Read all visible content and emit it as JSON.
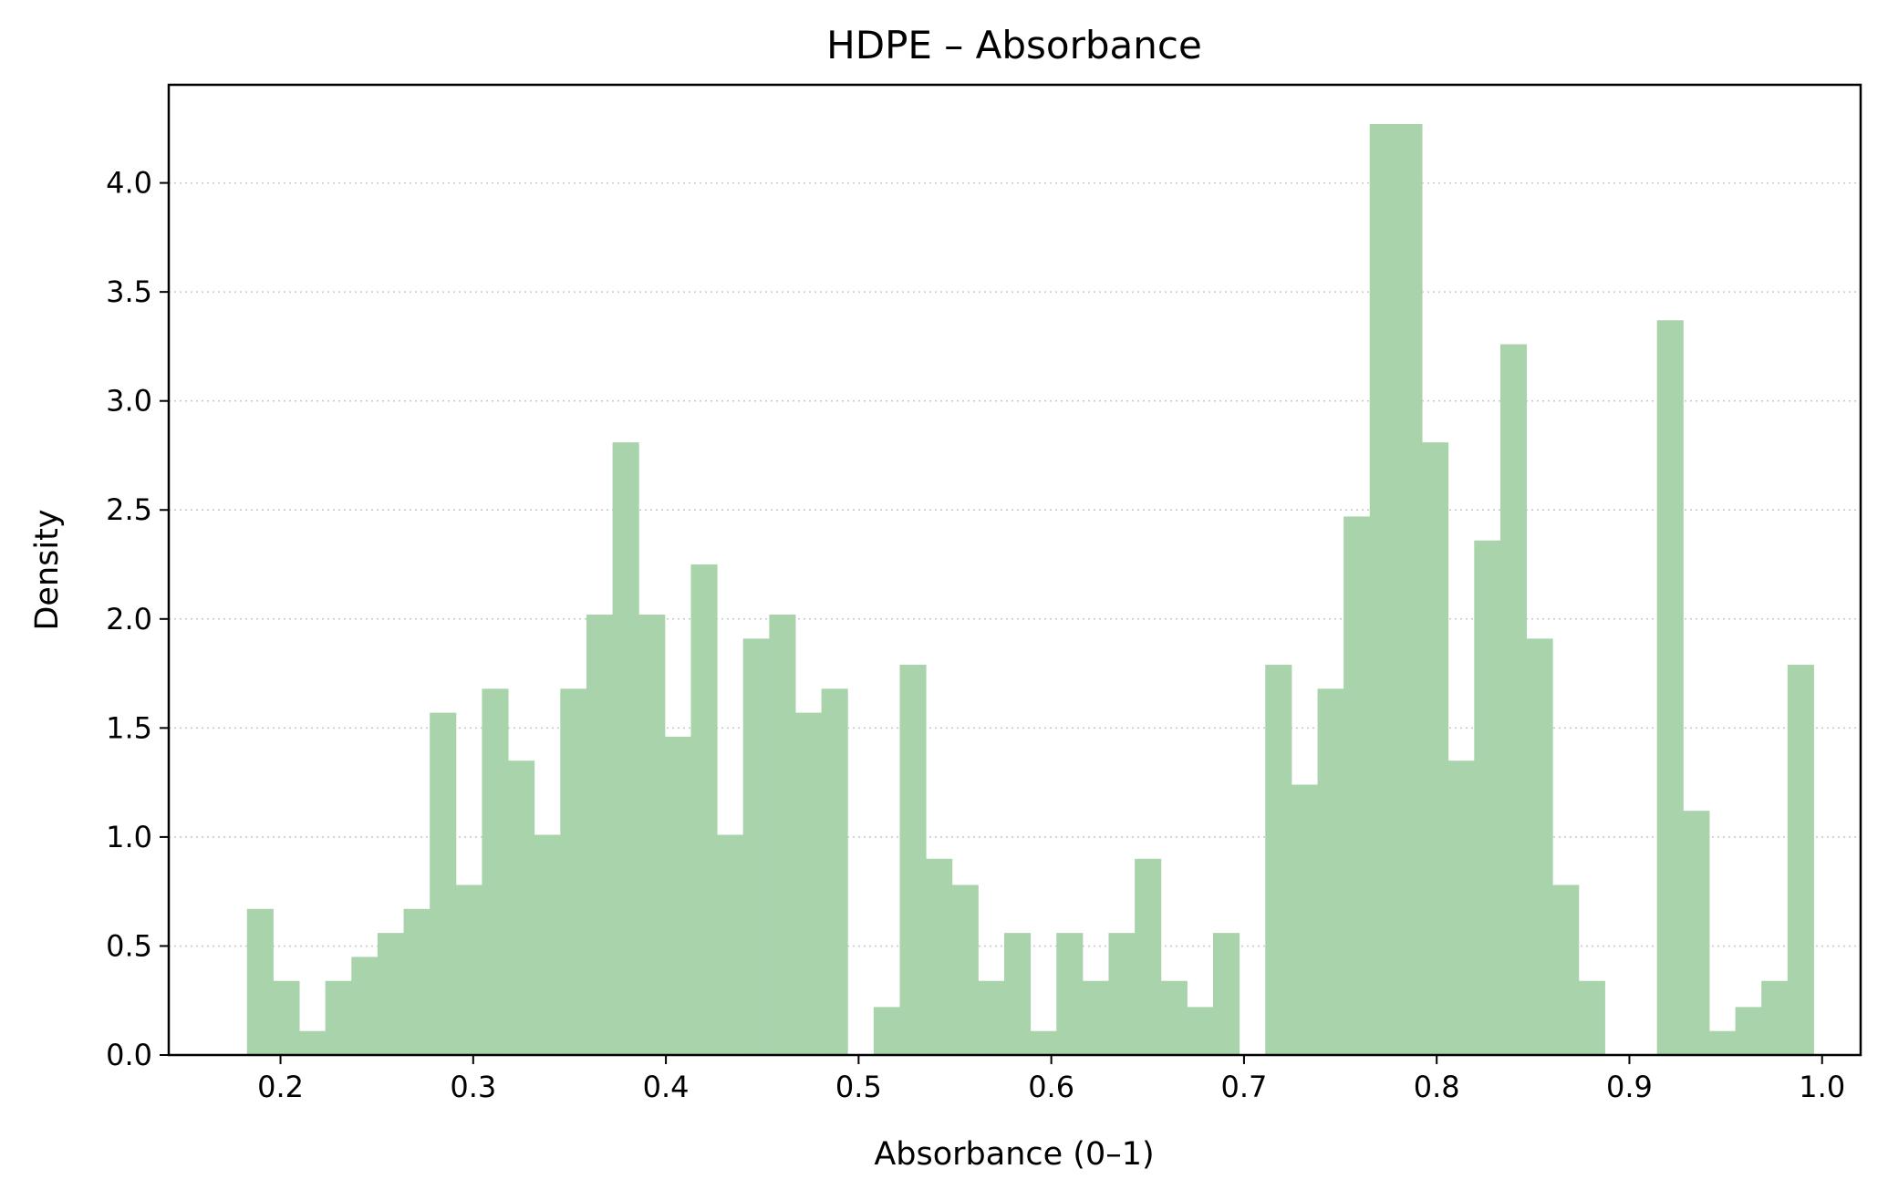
{
  "chart_data": {
    "type": "bar",
    "title": "HDPE – Absorbance",
    "xlabel": "Absorbance (0–1)",
    "ylabel": "Density",
    "xlim": [
      0.142,
      1.02
    ],
    "ylim": [
      0,
      4.45
    ],
    "xticks": [
      "0.2",
      "0.3",
      "0.4",
      "0.5",
      "0.6",
      "0.7",
      "0.8",
      "0.9",
      "1.0"
    ],
    "xtick_values": [
      0.2,
      0.3,
      0.4,
      0.5,
      0.6,
      0.7,
      0.8,
      0.9,
      1.0
    ],
    "yticks": [
      "0.0",
      "0.5",
      "1.0",
      "1.5",
      "2.0",
      "2.5",
      "3.0",
      "3.5",
      "4.0"
    ],
    "ytick_values": [
      0,
      0.5,
      1.0,
      1.5,
      2.0,
      2.5,
      3.0,
      3.5,
      4.0
    ],
    "grid": "y-dotted",
    "bar_color": "#a9d3ab",
    "bin_start": 0.1826,
    "bin_width": 0.01355,
    "values": [
      0.67,
      0.34,
      0.11,
      0.34,
      0.45,
      0.56,
      0.67,
      1.57,
      0.78,
      1.68,
      1.35,
      1.01,
      1.68,
      2.02,
      2.81,
      2.02,
      1.46,
      2.25,
      1.01,
      1.91,
      2.02,
      1.57,
      1.68,
      0.0,
      0.22,
      1.79,
      0.9,
      0.78,
      0.34,
      0.56,
      0.11,
      0.56,
      0.34,
      0.56,
      0.9,
      0.34,
      0.22,
      0.56,
      0.0,
      1.79,
      1.24,
      1.68,
      2.47,
      4.27,
      4.27,
      2.81,
      1.35,
      2.36,
      3.26,
      1.91,
      0.78,
      0.34,
      0.0,
      0.0,
      3.37,
      1.12,
      0.11,
      0.22,
      0.34,
      1.79
    ]
  }
}
